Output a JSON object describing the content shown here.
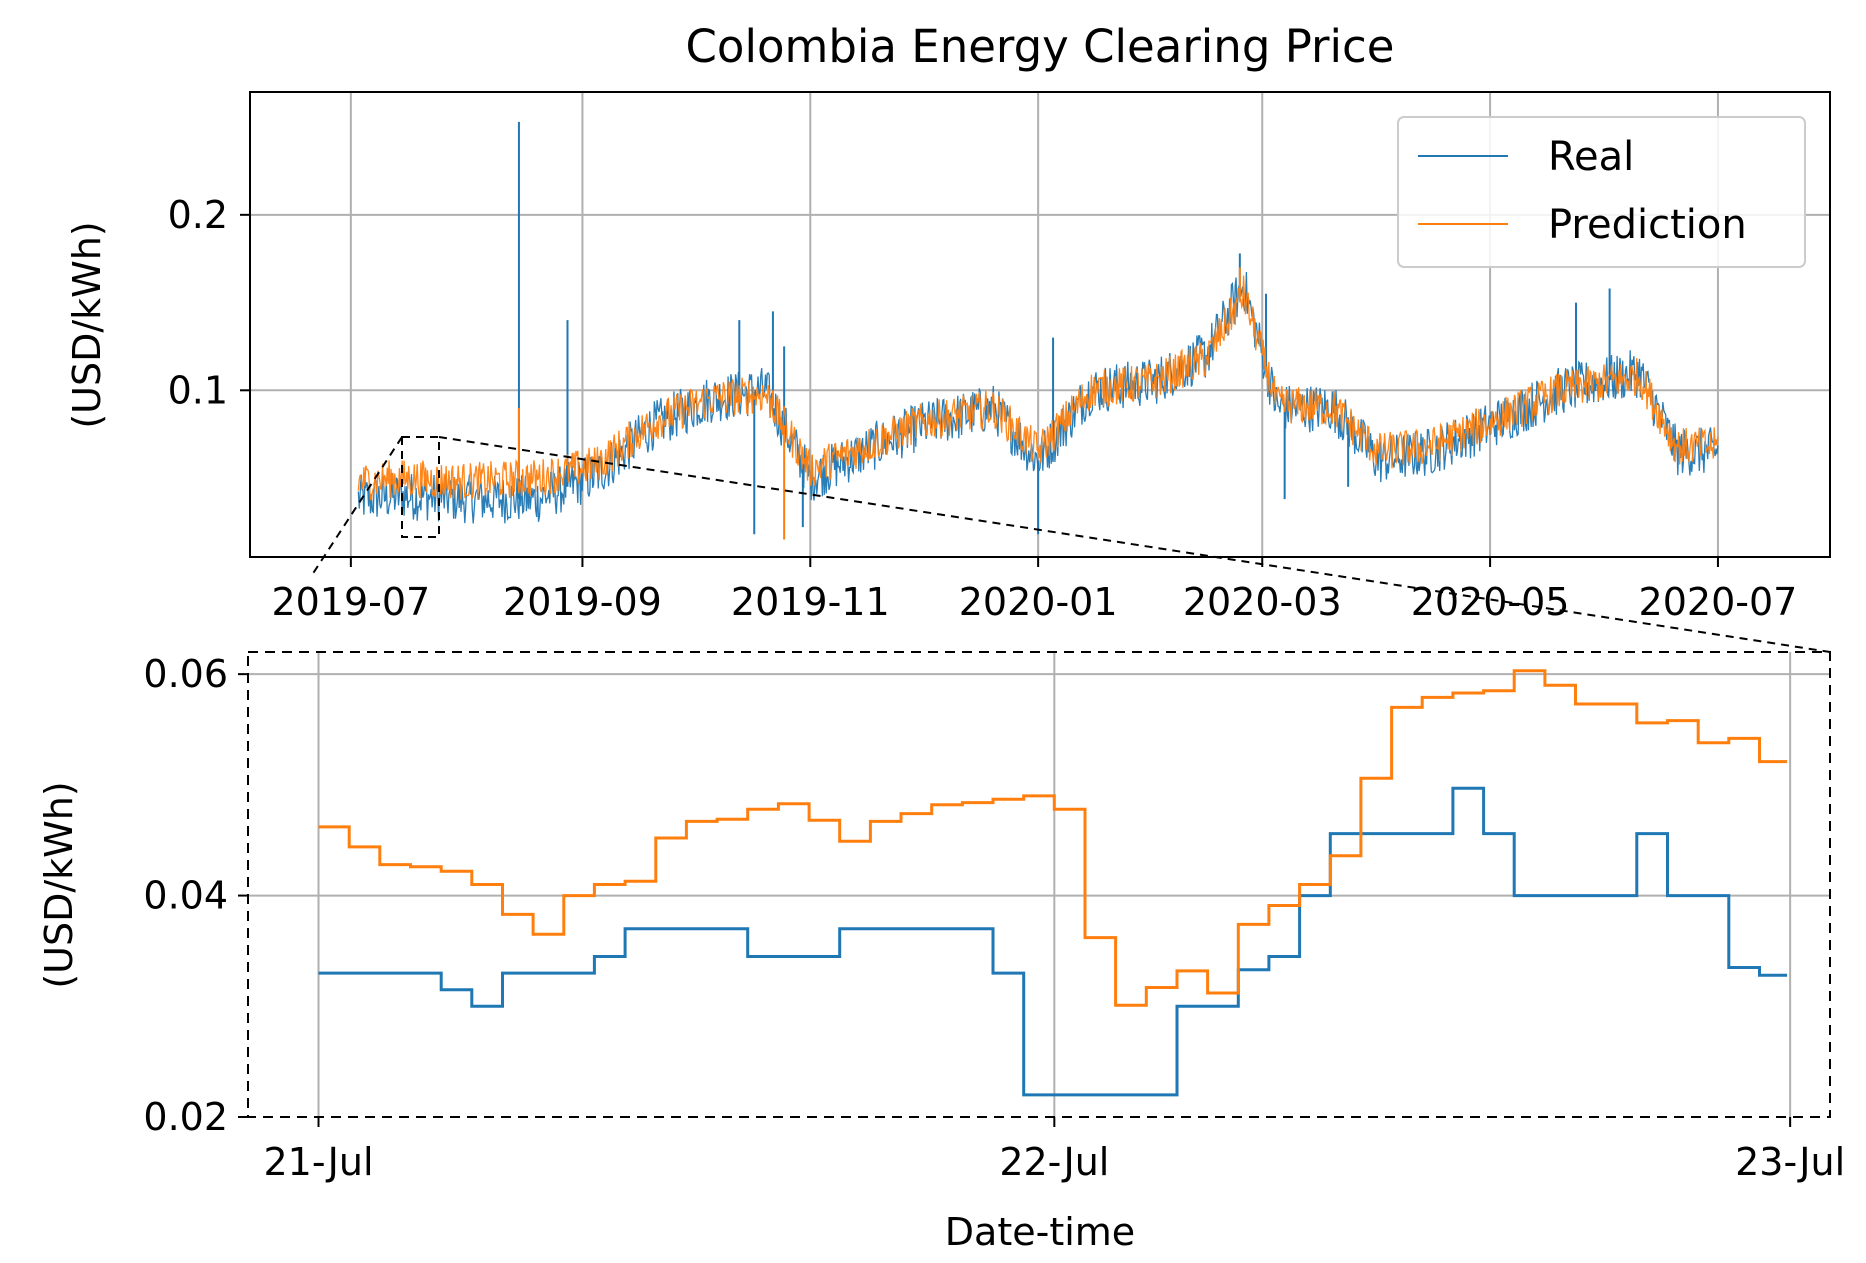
{
  "colors": {
    "real": "#1f77b4",
    "prediction": "#ff7f0e",
    "grid": "#b0b0b0",
    "axis": "#000000"
  },
  "chart_data": [
    {
      "id": "overview",
      "type": "line",
      "title": "Colombia Energy Clearing Price",
      "xlabel": "",
      "ylabel": "(USD/kWh)",
      "x_ticks": [
        "2019-07",
        "2019-09",
        "2019-11",
        "2020-01",
        "2020-03",
        "2020-05",
        "2020-07"
      ],
      "x_tick_dates": [
        "2019-07-01",
        "2019-09-01",
        "2019-11-01",
        "2020-01-01",
        "2020-03-01",
        "2020-05-01",
        "2020-07-01"
      ],
      "xlim": [
        "2019-06-04",
        "2020-07-31"
      ],
      "y_ticks": [
        0.1,
        0.2
      ],
      "ylim": [
        0.005,
        0.27
      ],
      "grid": true,
      "legend": {
        "position": "top-right",
        "entries": [
          "Real",
          "Prediction"
        ]
      },
      "series": [
        {
          "name": "Real",
          "anchors": [
            [
              "2019-07-03",
              0.038
            ],
            [
              "2019-07-15",
              0.04
            ],
            [
              "2019-08-01",
              0.038
            ],
            [
              "2019-08-20",
              0.038
            ],
            [
              "2019-09-05",
              0.052
            ],
            [
              "2019-09-20",
              0.08
            ],
            [
              "2019-10-05",
              0.095
            ],
            [
              "2019-10-20",
              0.1
            ],
            [
              "2019-11-01",
              0.05
            ],
            [
              "2019-11-20",
              0.07
            ],
            [
              "2019-12-01",
              0.08
            ],
            [
              "2019-12-20",
              0.09
            ],
            [
              "2020-01-01",
              0.06
            ],
            [
              "2020-01-15",
              0.1
            ],
            [
              "2020-02-01",
              0.105
            ],
            [
              "2020-02-15",
              0.12
            ],
            [
              "2020-02-25",
              0.16
            ],
            [
              "2020-03-05",
              0.09
            ],
            [
              "2020-03-20",
              0.09
            ],
            [
              "2020-04-01",
              0.06
            ],
            [
              "2020-04-15",
              0.065
            ],
            [
              "2020-05-01",
              0.08
            ],
            [
              "2020-05-20",
              0.1
            ],
            [
              "2020-06-10",
              0.11
            ],
            [
              "2020-06-20",
              0.065
            ],
            [
              "2020-07-01",
              0.065
            ]
          ],
          "spikes": [
            [
              "2019-08-15",
              0.253
            ],
            [
              "2019-08-28",
              0.14
            ],
            [
              "2019-10-22",
              0.145
            ],
            [
              "2019-10-25",
              0.125
            ],
            [
              "2020-02-24",
              0.178
            ],
            [
              "2020-03-02",
              0.155
            ],
            [
              "2020-06-02",
              0.158
            ],
            [
              "2020-05-24",
              0.15
            ],
            [
              "2020-01-05",
              0.13
            ],
            [
              "2019-10-13",
              0.14
            ]
          ],
          "dips": [
            [
              "2019-10-17",
              0.018
            ],
            [
              "2019-10-30",
              0.022
            ],
            [
              "2020-01-01",
              0.018
            ],
            [
              "2020-03-07",
              0.038
            ],
            [
              "2020-03-24",
              0.045
            ]
          ]
        },
        {
          "name": "Prediction",
          "anchors": [
            [
              "2019-07-03",
              0.048
            ],
            [
              "2019-07-15",
              0.05
            ],
            [
              "2019-08-01",
              0.048
            ],
            [
              "2019-08-20",
              0.05
            ],
            [
              "2019-09-05",
              0.058
            ],
            [
              "2019-09-20",
              0.082
            ],
            [
              "2019-10-05",
              0.095
            ],
            [
              "2019-10-20",
              0.098
            ],
            [
              "2019-11-01",
              0.055
            ],
            [
              "2019-11-20",
              0.072
            ],
            [
              "2019-12-01",
              0.082
            ],
            [
              "2019-12-20",
              0.09
            ],
            [
              "2020-01-01",
              0.065
            ],
            [
              "2020-01-15",
              0.1
            ],
            [
              "2020-02-01",
              0.105
            ],
            [
              "2020-02-15",
              0.118
            ],
            [
              "2020-02-25",
              0.155
            ],
            [
              "2020-03-05",
              0.092
            ],
            [
              "2020-03-20",
              0.09
            ],
            [
              "2020-04-01",
              0.065
            ],
            [
              "2020-04-15",
              0.068
            ],
            [
              "2020-05-01",
              0.082
            ],
            [
              "2020-05-20",
              0.1
            ],
            [
              "2020-06-10",
              0.108
            ],
            [
              "2020-06-20",
              0.068
            ],
            [
              "2020-07-01",
              0.068
            ]
          ],
          "spikes": [
            [
              "2019-08-15",
              0.09
            ],
            [
              "2019-10-22",
              0.1
            ],
            [
              "2020-02-24",
              0.17
            ]
          ],
          "dips": [
            [
              "2019-10-25",
              0.015
            ]
          ]
        }
      ]
    },
    {
      "id": "zoom",
      "type": "line",
      "title": "",
      "xlabel": "Date-time",
      "ylabel": "(USD/kWh)",
      "x_ticks": [
        "21-Jul",
        "22-Jul",
        "23-Jul"
      ],
      "x_tick_hours": [
        0,
        24,
        48
      ],
      "xlim": [
        -2.3,
        49.3
      ],
      "y_ticks": [
        "0.02",
        "0.04",
        "0.06"
      ],
      "y_tick_values": [
        0.02,
        0.04,
        0.06
      ],
      "ylim": [
        0.02,
        0.062
      ],
      "grid": true,
      "step": "post",
      "series": [
        {
          "name": "Real",
          "x": [
            0,
            1,
            2,
            3,
            4,
            5,
            6,
            7,
            8,
            9,
            10,
            11,
            12,
            13,
            14,
            15,
            16,
            17,
            18,
            19,
            20,
            21,
            22,
            23,
            24,
            25,
            26,
            27,
            28,
            29,
            30,
            31,
            32,
            33,
            34,
            35,
            36,
            37,
            38,
            39,
            40,
            41,
            42,
            43,
            44,
            45,
            46,
            47
          ],
          "y": [
            0.033,
            0.033,
            0.033,
            0.033,
            0.0315,
            0.03,
            0.033,
            0.033,
            0.033,
            0.0345,
            0.037,
            0.037,
            0.037,
            0.037,
            0.0345,
            0.0345,
            0.0345,
            0.037,
            0.037,
            0.037,
            0.037,
            0.037,
            0.033,
            0.022,
            0.022,
            0.022,
            0.022,
            0.022,
            0.03,
            0.03,
            0.0333,
            0.0345,
            0.04,
            0.0456,
            0.0456,
            0.0456,
            0.0456,
            0.0497,
            0.0456,
            0.04,
            0.04,
            0.04,
            0.04,
            0.0456,
            0.04,
            0.04,
            0.0335,
            0.0328
          ]
        },
        {
          "name": "Prediction",
          "x": [
            0,
            1,
            2,
            3,
            4,
            5,
            6,
            7,
            8,
            9,
            10,
            11,
            12,
            13,
            14,
            15,
            16,
            17,
            18,
            19,
            20,
            21,
            22,
            23,
            24,
            25,
            26,
            27,
            28,
            29,
            30,
            31,
            32,
            33,
            34,
            35,
            36,
            37,
            38,
            39,
            40,
            41,
            42,
            43,
            44,
            45,
            46,
            47
          ],
          "y": [
            0.0462,
            0.0444,
            0.0428,
            0.0426,
            0.0422,
            0.041,
            0.0383,
            0.0365,
            0.04,
            0.041,
            0.0413,
            0.0452,
            0.0467,
            0.0469,
            0.0478,
            0.0483,
            0.0468,
            0.0449,
            0.0467,
            0.0474,
            0.0482,
            0.0484,
            0.0487,
            0.049,
            0.0478,
            0.0362,
            0.0301,
            0.0317,
            0.0332,
            0.0312,
            0.0374,
            0.0391,
            0.041,
            0.0436,
            0.0506,
            0.057,
            0.0579,
            0.0583,
            0.0585,
            0.0603,
            0.059,
            0.0573,
            0.0573,
            0.0556,
            0.0558,
            0.0538,
            0.0542,
            0.0521
          ]
        }
      ]
    }
  ]
}
